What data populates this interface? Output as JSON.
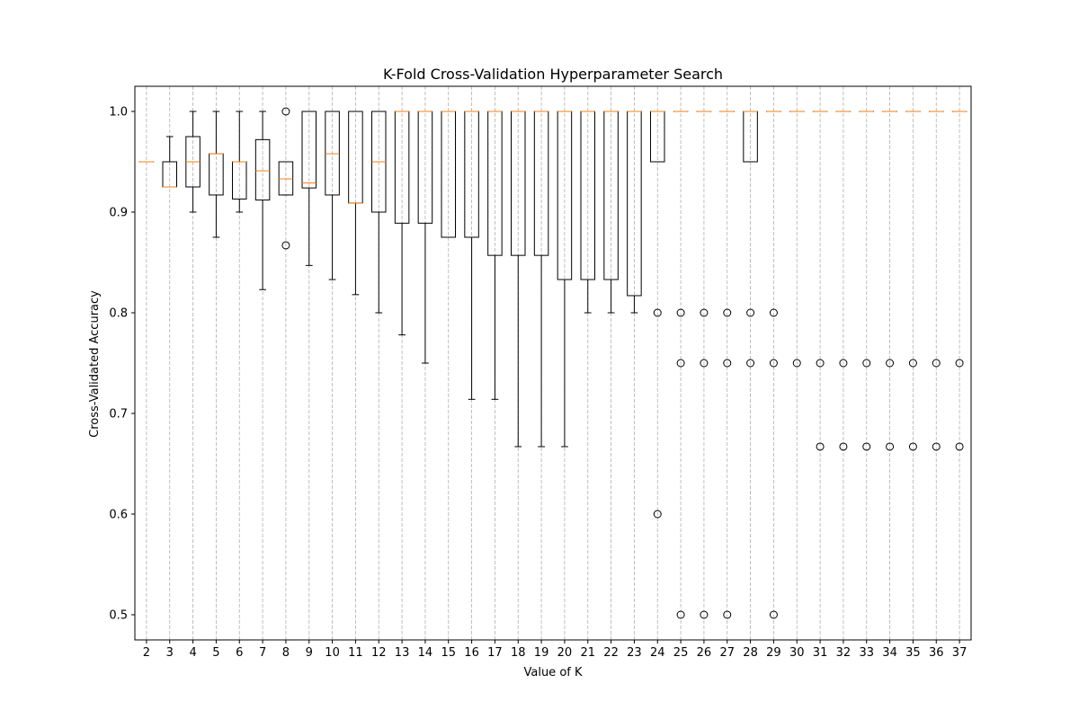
{
  "chart_data": {
    "type": "box",
    "title": "K-Fold Cross-Validation Hyperparameter Search",
    "xlabel": "Value of K",
    "ylabel": "Cross-Validated Accuracy",
    "ylim": [
      0.475,
      1.025
    ],
    "yticks": [
      "0.5",
      "0.6",
      "0.7",
      "0.8",
      "0.9",
      "1.0"
    ],
    "grid": "x-dashed",
    "categories": [
      "2",
      "3",
      "4",
      "5",
      "6",
      "7",
      "8",
      "9",
      "10",
      "11",
      "12",
      "13",
      "14",
      "15",
      "16",
      "17",
      "18",
      "19",
      "20",
      "21",
      "22",
      "23",
      "24",
      "25",
      "26",
      "27",
      "28",
      "29",
      "30",
      "31",
      "32",
      "33",
      "34",
      "35",
      "36",
      "37"
    ],
    "boxes": [
      {
        "k": "2",
        "whislo": 0.95,
        "q1": 0.95,
        "med": 0.95,
        "q3": 0.95,
        "whishi": 0.95,
        "fliers": []
      },
      {
        "k": "3",
        "whislo": 0.925,
        "q1": 0.925,
        "med": 0.925,
        "q3": 0.95,
        "whishi": 0.975,
        "fliers": []
      },
      {
        "k": "4",
        "whislo": 0.9,
        "q1": 0.925,
        "med": 0.95,
        "q3": 0.975,
        "whishi": 1.0,
        "fliers": []
      },
      {
        "k": "5",
        "whislo": 0.875,
        "q1": 0.917,
        "med": 0.958,
        "q3": 0.958,
        "whishi": 1.0,
        "fliers": []
      },
      {
        "k": "6",
        "whislo": 0.9,
        "q1": 0.913,
        "med": 0.95,
        "q3": 0.95,
        "whishi": 1.0,
        "fliers": []
      },
      {
        "k": "7",
        "whislo": 0.823,
        "q1": 0.912,
        "med": 0.941,
        "q3": 0.972,
        "whishi": 1.0,
        "fliers": []
      },
      {
        "k": "8",
        "whislo": 0.917,
        "q1": 0.917,
        "med": 0.933,
        "q3": 0.95,
        "whishi": 0.95,
        "fliers": [
          0.867,
          1.0
        ]
      },
      {
        "k": "9",
        "whislo": 0.847,
        "q1": 0.924,
        "med": 0.929,
        "q3": 1.0,
        "whishi": 1.0,
        "fliers": []
      },
      {
        "k": "10",
        "whislo": 0.833,
        "q1": 0.917,
        "med": 0.958,
        "q3": 1.0,
        "whishi": 1.0,
        "fliers": []
      },
      {
        "k": "11",
        "whislo": 0.818,
        "q1": 0.909,
        "med": 0.909,
        "q3": 1.0,
        "whishi": 1.0,
        "fliers": []
      },
      {
        "k": "12",
        "whislo": 0.8,
        "q1": 0.9,
        "med": 0.95,
        "q3": 1.0,
        "whishi": 1.0,
        "fliers": []
      },
      {
        "k": "13",
        "whislo": 0.778,
        "q1": 0.889,
        "med": 1.0,
        "q3": 1.0,
        "whishi": 1.0,
        "fliers": []
      },
      {
        "k": "14",
        "whislo": 0.75,
        "q1": 0.889,
        "med": 1.0,
        "q3": 1.0,
        "whishi": 1.0,
        "fliers": []
      },
      {
        "k": "15",
        "whislo": 0.875,
        "q1": 0.875,
        "med": 1.0,
        "q3": 1.0,
        "whishi": 1.0,
        "fliers": []
      },
      {
        "k": "16",
        "whislo": 0.714,
        "q1": 0.875,
        "med": 1.0,
        "q3": 1.0,
        "whishi": 1.0,
        "fliers": []
      },
      {
        "k": "17",
        "whislo": 0.714,
        "q1": 0.857,
        "med": 1.0,
        "q3": 1.0,
        "whishi": 1.0,
        "fliers": []
      },
      {
        "k": "18",
        "whislo": 0.667,
        "q1": 0.857,
        "med": 1.0,
        "q3": 1.0,
        "whishi": 1.0,
        "fliers": []
      },
      {
        "k": "19",
        "whislo": 0.667,
        "q1": 0.857,
        "med": 1.0,
        "q3": 1.0,
        "whishi": 1.0,
        "fliers": []
      },
      {
        "k": "20",
        "whislo": 0.667,
        "q1": 0.833,
        "med": 1.0,
        "q3": 1.0,
        "whishi": 1.0,
        "fliers": []
      },
      {
        "k": "21",
        "whislo": 0.8,
        "q1": 0.833,
        "med": 1.0,
        "q3": 1.0,
        "whishi": 1.0,
        "fliers": []
      },
      {
        "k": "22",
        "whislo": 0.8,
        "q1": 0.833,
        "med": 1.0,
        "q3": 1.0,
        "whishi": 1.0,
        "fliers": []
      },
      {
        "k": "23",
        "whislo": 0.8,
        "q1": 0.817,
        "med": 1.0,
        "q3": 1.0,
        "whishi": 1.0,
        "fliers": []
      },
      {
        "k": "24",
        "whislo": 0.95,
        "q1": 0.95,
        "med": 1.0,
        "q3": 1.0,
        "whishi": 1.0,
        "fliers": [
          0.8,
          0.6
        ]
      },
      {
        "k": "25",
        "whislo": 1.0,
        "q1": 1.0,
        "med": 1.0,
        "q3": 1.0,
        "whishi": 1.0,
        "fliers": [
          0.8,
          0.75,
          0.5
        ]
      },
      {
        "k": "26",
        "whislo": 1.0,
        "q1": 1.0,
        "med": 1.0,
        "q3": 1.0,
        "whishi": 1.0,
        "fliers": [
          0.8,
          0.75,
          0.5
        ]
      },
      {
        "k": "27",
        "whislo": 1.0,
        "q1": 1.0,
        "med": 1.0,
        "q3": 1.0,
        "whishi": 1.0,
        "fliers": [
          0.8,
          0.75,
          0.5
        ]
      },
      {
        "k": "28",
        "whislo": 0.95,
        "q1": 0.95,
        "med": 1.0,
        "q3": 1.0,
        "whishi": 1.0,
        "fliers": [
          0.8,
          0.75
        ]
      },
      {
        "k": "29",
        "whislo": 1.0,
        "q1": 1.0,
        "med": 1.0,
        "q3": 1.0,
        "whishi": 1.0,
        "fliers": [
          0.8,
          0.75,
          0.5
        ]
      },
      {
        "k": "30",
        "whislo": 1.0,
        "q1": 1.0,
        "med": 1.0,
        "q3": 1.0,
        "whishi": 1.0,
        "fliers": [
          0.75
        ]
      },
      {
        "k": "31",
        "whislo": 1.0,
        "q1": 1.0,
        "med": 1.0,
        "q3": 1.0,
        "whishi": 1.0,
        "fliers": [
          0.75,
          0.667
        ]
      },
      {
        "k": "32",
        "whislo": 1.0,
        "q1": 1.0,
        "med": 1.0,
        "q3": 1.0,
        "whishi": 1.0,
        "fliers": [
          0.75,
          0.667
        ]
      },
      {
        "k": "33",
        "whislo": 1.0,
        "q1": 1.0,
        "med": 1.0,
        "q3": 1.0,
        "whishi": 1.0,
        "fliers": [
          0.75,
          0.667
        ]
      },
      {
        "k": "34",
        "whislo": 1.0,
        "q1": 1.0,
        "med": 1.0,
        "q3": 1.0,
        "whishi": 1.0,
        "fliers": [
          0.75,
          0.667
        ]
      },
      {
        "k": "35",
        "whislo": 1.0,
        "q1": 1.0,
        "med": 1.0,
        "q3": 1.0,
        "whishi": 1.0,
        "fliers": [
          0.75,
          0.667
        ]
      },
      {
        "k": "36",
        "whislo": 1.0,
        "q1": 1.0,
        "med": 1.0,
        "q3": 1.0,
        "whishi": 1.0,
        "fliers": [
          0.75,
          0.667
        ]
      },
      {
        "k": "37",
        "whislo": 1.0,
        "q1": 1.0,
        "med": 1.0,
        "q3": 1.0,
        "whishi": 1.0,
        "fliers": [
          0.75,
          0.667
        ]
      }
    ],
    "colors": {
      "box": "#000000",
      "median": "#ff7f0e",
      "grid": "#b0b0b0"
    }
  }
}
